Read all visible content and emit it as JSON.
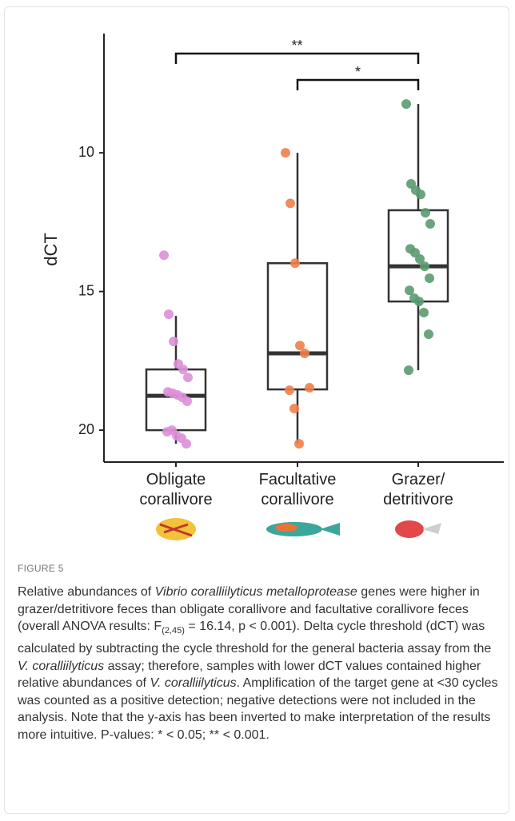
{
  "chart_data": {
    "type": "box",
    "ylabel": "dCT",
    "categories": [
      "Obligate\ncorallivore",
      "Facultative\ncorallivore",
      "Grazer/\ndetritivore"
    ],
    "ylim": [
      5.7,
      21.15
    ],
    "y_inverted": true,
    "yticks": [
      10,
      15,
      20
    ],
    "boxes": [
      {
        "color": "#dd90d8",
        "whisker_low": 15.88,
        "q1": 17.81,
        "median": 18.76,
        "q3": 20.0,
        "whisker_high": 20.49,
        "points": [
          13.69,
          15.82,
          16.8,
          17.61,
          17.81,
          18.1,
          18.62,
          18.67,
          18.73,
          18.82,
          18.96,
          20.06,
          20.0,
          20.2,
          20.29,
          20.49
        ]
      },
      {
        "color": "#f27f4b",
        "whisker_low": 10.0,
        "q1": 13.98,
        "median": 17.23,
        "q3": 18.53,
        "whisker_high": 20.49,
        "points": [
          10.0,
          11.82,
          13.98,
          16.95,
          17.23,
          18.47,
          18.56,
          19.22,
          20.49
        ]
      },
      {
        "color": "#5b9b6f",
        "whisker_low": 8.24,
        "q1": 12.07,
        "median": 14.09,
        "q3": 15.36,
        "whisker_high": 17.84,
        "points": [
          8.24,
          11.12,
          11.35,
          11.5,
          12.16,
          12.56,
          13.46,
          13.6,
          13.83,
          14.09,
          14.52,
          14.96,
          15.24,
          15.36,
          15.76,
          16.54,
          17.84
        ]
      }
    ],
    "annotations": [
      {
        "text": "**",
        "from": "Obligate\ncorallivore",
        "to": "Grazer/\ndetritivore"
      },
      {
        "text": "*",
        "from": "Facultative\ncorallivore",
        "to": "Grazer/\ndetritivore"
      }
    ]
  },
  "figure": {
    "label": "FIGURE 5",
    "caption": [
      {
        "text": "Relative abundances of "
      },
      {
        "text": "Vibrio coralliilyticus metalloprotease",
        "style": "italic"
      },
      {
        "text": " genes were higher in grazer/detritivore feces than obligate corallivore and facultative corallivore feces (overall ANOVA results: F"
      },
      {
        "text": "(2,45)",
        "style": "sub"
      },
      {
        "text": " = 16.14, p < 0.001). Delta cycle threshold (dCT) was calculated by subtracting the cycle threshold for the general bacteria assay from the "
      },
      {
        "text": "V. coralliilyticus",
        "style": "italic"
      },
      {
        "text": " assay; therefore, samples with lower dCT values contained higher relative abundances of "
      },
      {
        "text": "V. coralliilyticus",
        "style": "italic"
      },
      {
        "text": ". Amplification of the target gene at <30 cycles was counted as a positive detection; negative detections were not included in the analysis. Note that the y-axis has been inverted to make interpretation of the results more intuitive. P-values: * < 0.05; ** < 0.001."
      }
    ]
  }
}
